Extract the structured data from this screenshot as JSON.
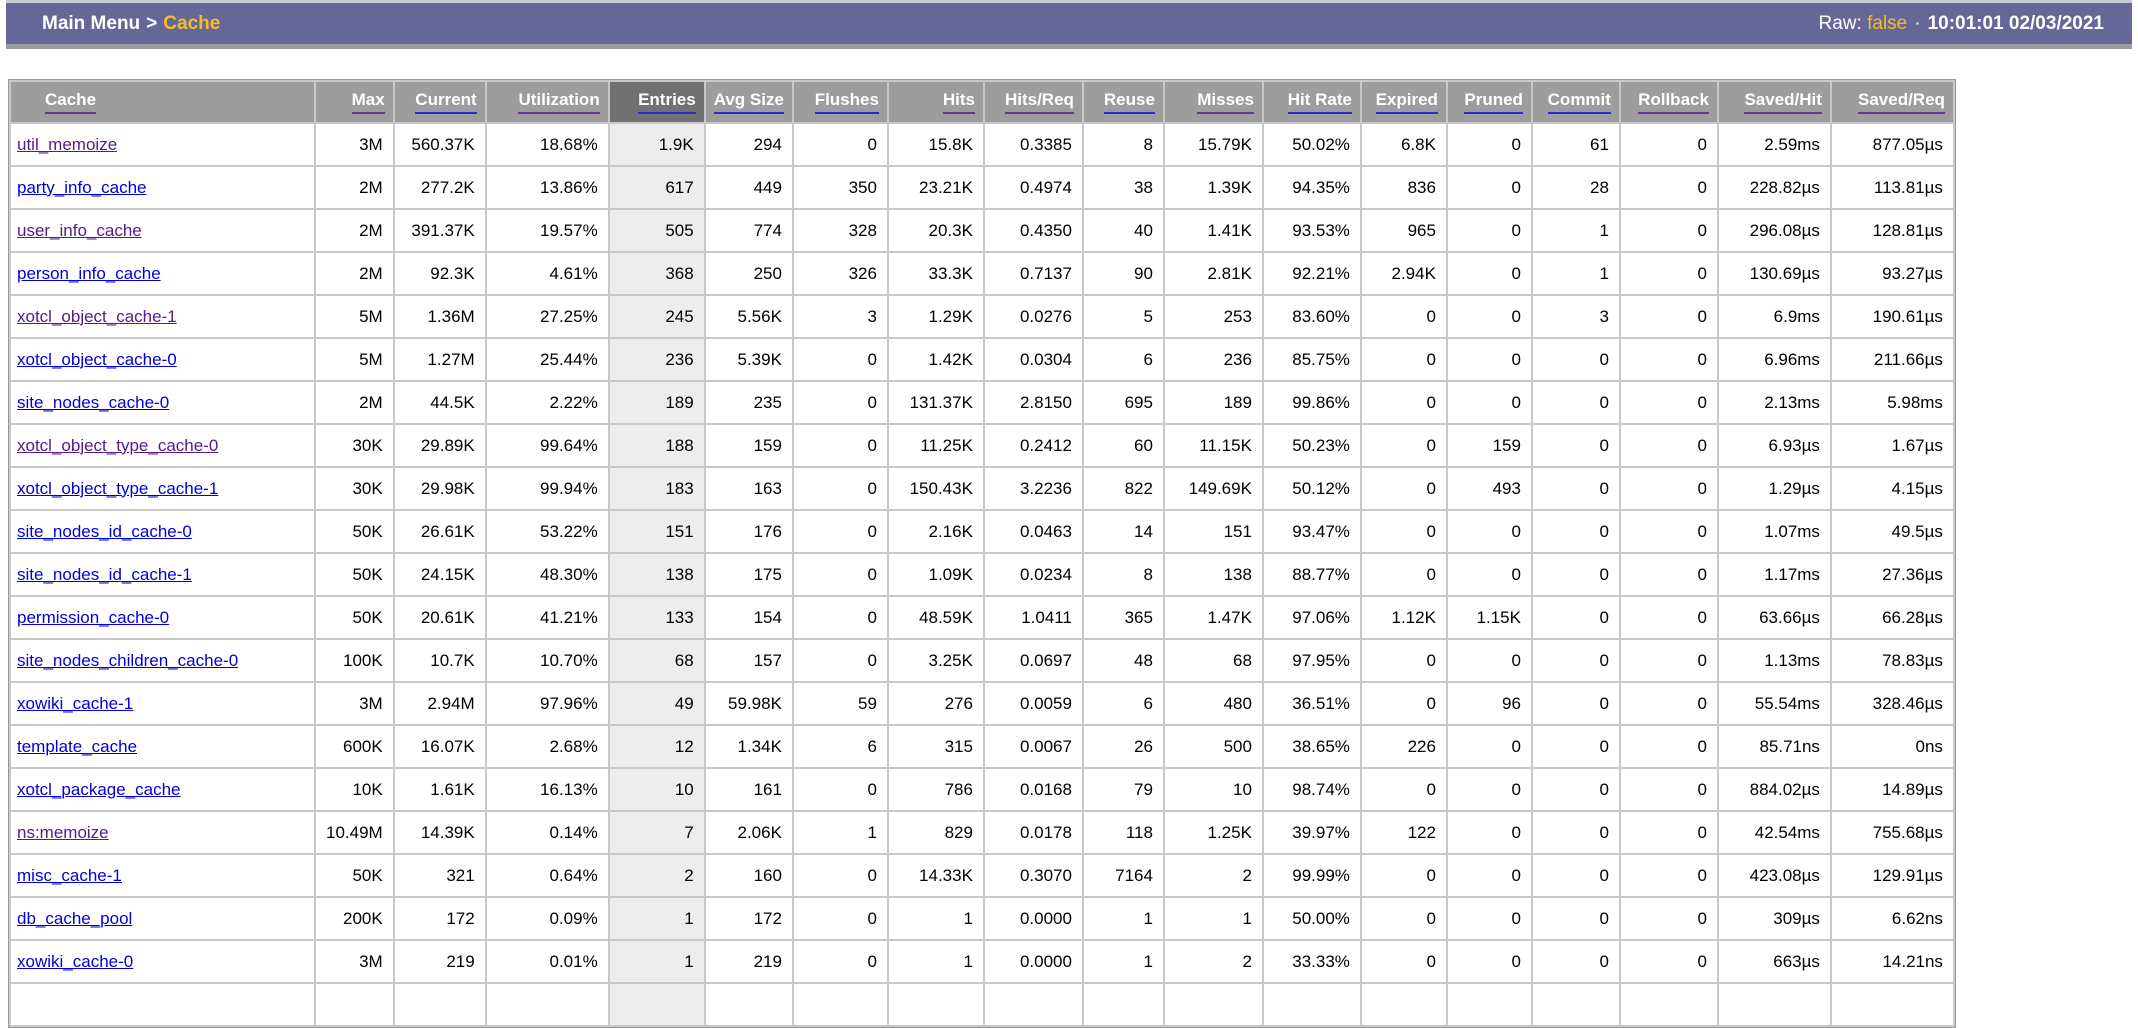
{
  "topbar": {
    "breadcrumb_root": "Main Menu",
    "breadcrumb_sep": ">",
    "breadcrumb_current": "Cache",
    "raw_label": "Raw:",
    "raw_value": "false",
    "dot": "·",
    "timestamp": "10:01:01 02/03/2021"
  },
  "colors": {
    "bar_bg": "#666699",
    "accent_yellow": "#f5bd1f",
    "header_bg": "#9d9d9d",
    "sorted_header_bg": "#717171",
    "sorted_column_bg": "#ededed",
    "link_visited": "#551a8b",
    "link_unvisited": "#0000dd"
  },
  "table": {
    "columns": [
      {
        "label": "Cache",
        "underline": "purple",
        "align": "left",
        "sorted": false
      },
      {
        "label": "Max",
        "underline": "purple",
        "align": "right",
        "sorted": false
      },
      {
        "label": "Current",
        "underline": "blue",
        "align": "right",
        "sorted": false
      },
      {
        "label": "Utilization",
        "underline": "purple",
        "align": "right",
        "sorted": false
      },
      {
        "label": "Entries",
        "underline": "blue",
        "align": "right",
        "sorted": true
      },
      {
        "label": "Avg Size",
        "underline": "blue",
        "align": "right",
        "sorted": false
      },
      {
        "label": "Flushes",
        "underline": "blue",
        "align": "right",
        "sorted": false
      },
      {
        "label": "Hits",
        "underline": "purple",
        "align": "right",
        "sorted": false
      },
      {
        "label": "Hits/Req",
        "underline": "purple",
        "align": "right",
        "sorted": false
      },
      {
        "label": "Reuse",
        "underline": "blue",
        "align": "right",
        "sorted": false
      },
      {
        "label": "Misses",
        "underline": "purple",
        "align": "right",
        "sorted": false
      },
      {
        "label": "Hit Rate",
        "underline": "blue",
        "align": "right",
        "sorted": false
      },
      {
        "label": "Expired",
        "underline": "blue",
        "align": "right",
        "sorted": false
      },
      {
        "label": "Pruned",
        "underline": "blue",
        "align": "right",
        "sorted": false
      },
      {
        "label": "Commit",
        "underline": "blue",
        "align": "right",
        "sorted": false
      },
      {
        "label": "Rollback",
        "underline": "purple",
        "align": "right",
        "sorted": false
      },
      {
        "label": "Saved/Hit",
        "underline": "purple",
        "align": "right",
        "sorted": false
      },
      {
        "label": "Saved/Req",
        "underline": "purple",
        "align": "right",
        "sorted": false
      }
    ],
    "rows": [
      {
        "name": "util_memoize",
        "visited": true,
        "values": [
          "3M",
          "560.37K",
          "18.68%",
          "1.9K",
          "294",
          "0",
          "15.8K",
          "0.3385",
          "8",
          "15.79K",
          "50.02%",
          "6.8K",
          "0",
          "61",
          "0",
          "2.59ms",
          "877.05µs"
        ]
      },
      {
        "name": "party_info_cache",
        "visited": false,
        "values": [
          "2M",
          "277.2K",
          "13.86%",
          "617",
          "449",
          "350",
          "23.21K",
          "0.4974",
          "38",
          "1.39K",
          "94.35%",
          "836",
          "0",
          "28",
          "0",
          "228.82µs",
          "113.81µs"
        ]
      },
      {
        "name": "user_info_cache",
        "visited": true,
        "values": [
          "2M",
          "391.37K",
          "19.57%",
          "505",
          "774",
          "328",
          "20.3K",
          "0.4350",
          "40",
          "1.41K",
          "93.53%",
          "965",
          "0",
          "1",
          "0",
          "296.08µs",
          "128.81µs"
        ]
      },
      {
        "name": "person_info_cache",
        "visited": false,
        "values": [
          "2M",
          "92.3K",
          "4.61%",
          "368",
          "250",
          "326",
          "33.3K",
          "0.7137",
          "90",
          "2.81K",
          "92.21%",
          "2.94K",
          "0",
          "1",
          "0",
          "130.69µs",
          "93.27µs"
        ]
      },
      {
        "name": "xotcl_object_cache-1",
        "visited": true,
        "values": [
          "5M",
          "1.36M",
          "27.25%",
          "245",
          "5.56K",
          "3",
          "1.29K",
          "0.0276",
          "5",
          "253",
          "83.60%",
          "0",
          "0",
          "3",
          "0",
          "6.9ms",
          "190.61µs"
        ]
      },
      {
        "name": "xotcl_object_cache-0",
        "visited": false,
        "values": [
          "5M",
          "1.27M",
          "25.44%",
          "236",
          "5.39K",
          "0",
          "1.42K",
          "0.0304",
          "6",
          "236",
          "85.75%",
          "0",
          "0",
          "0",
          "0",
          "6.96ms",
          "211.66µs"
        ]
      },
      {
        "name": "site_nodes_cache-0",
        "visited": false,
        "values": [
          "2M",
          "44.5K",
          "2.22%",
          "189",
          "235",
          "0",
          "131.37K",
          "2.8150",
          "695",
          "189",
          "99.86%",
          "0",
          "0",
          "0",
          "0",
          "2.13ms",
          "5.98ms"
        ]
      },
      {
        "name": "xotcl_object_type_cache-0",
        "visited": true,
        "values": [
          "30K",
          "29.89K",
          "99.64%",
          "188",
          "159",
          "0",
          "11.25K",
          "0.2412",
          "60",
          "11.15K",
          "50.23%",
          "0",
          "159",
          "0",
          "0",
          "6.93µs",
          "1.67µs"
        ]
      },
      {
        "name": "xotcl_object_type_cache-1",
        "visited": false,
        "values": [
          "30K",
          "29.98K",
          "99.94%",
          "183",
          "163",
          "0",
          "150.43K",
          "3.2236",
          "822",
          "149.69K",
          "50.12%",
          "0",
          "493",
          "0",
          "0",
          "1.29µs",
          "4.15µs"
        ]
      },
      {
        "name": "site_nodes_id_cache-0",
        "visited": false,
        "values": [
          "50K",
          "26.61K",
          "53.22%",
          "151",
          "176",
          "0",
          "2.16K",
          "0.0463",
          "14",
          "151",
          "93.47%",
          "0",
          "0",
          "0",
          "0",
          "1.07ms",
          "49.5µs"
        ]
      },
      {
        "name": "site_nodes_id_cache-1",
        "visited": false,
        "values": [
          "50K",
          "24.15K",
          "48.30%",
          "138",
          "175",
          "0",
          "1.09K",
          "0.0234",
          "8",
          "138",
          "88.77%",
          "0",
          "0",
          "0",
          "0",
          "1.17ms",
          "27.36µs"
        ]
      },
      {
        "name": "permission_cache-0",
        "visited": false,
        "values": [
          "50K",
          "20.61K",
          "41.21%",
          "133",
          "154",
          "0",
          "48.59K",
          "1.0411",
          "365",
          "1.47K",
          "97.06%",
          "1.12K",
          "1.15K",
          "0",
          "0",
          "63.66µs",
          "66.28µs"
        ]
      },
      {
        "name": "site_nodes_children_cache-0",
        "visited": false,
        "values": [
          "100K",
          "10.7K",
          "10.70%",
          "68",
          "157",
          "0",
          "3.25K",
          "0.0697",
          "48",
          "68",
          "97.95%",
          "0",
          "0",
          "0",
          "0",
          "1.13ms",
          "78.83µs"
        ]
      },
      {
        "name": "xowiki_cache-1",
        "visited": false,
        "values": [
          "3M",
          "2.94M",
          "97.96%",
          "49",
          "59.98K",
          "59",
          "276",
          "0.0059",
          "6",
          "480",
          "36.51%",
          "0",
          "96",
          "0",
          "0",
          "55.54ms",
          "328.46µs"
        ]
      },
      {
        "name": "template_cache",
        "visited": false,
        "values": [
          "600K",
          "16.07K",
          "2.68%",
          "12",
          "1.34K",
          "6",
          "315",
          "0.0067",
          "26",
          "500",
          "38.65%",
          "226",
          "0",
          "0",
          "0",
          "85.71ns",
          "0ns"
        ]
      },
      {
        "name": "xotcl_package_cache",
        "visited": false,
        "values": [
          "10K",
          "1.61K",
          "16.13%",
          "10",
          "161",
          "0",
          "786",
          "0.0168",
          "79",
          "10",
          "98.74%",
          "0",
          "0",
          "0",
          "0",
          "884.02µs",
          "14.89µs"
        ]
      },
      {
        "name": "ns:memoize",
        "visited": true,
        "values": [
          "10.49M",
          "14.39K",
          "0.14%",
          "7",
          "2.06K",
          "1",
          "829",
          "0.0178",
          "118",
          "1.25K",
          "39.97%",
          "122",
          "0",
          "0",
          "0",
          "42.54ms",
          "755.68µs"
        ]
      },
      {
        "name": "misc_cache-1",
        "visited": false,
        "values": [
          "50K",
          "321",
          "0.64%",
          "2",
          "160",
          "0",
          "14.33K",
          "0.3070",
          "7164",
          "2",
          "99.99%",
          "0",
          "0",
          "0",
          "0",
          "423.08µs",
          "129.91µs"
        ]
      },
      {
        "name": "db_cache_pool",
        "visited": false,
        "values": [
          "200K",
          "172",
          "0.09%",
          "1",
          "172",
          "0",
          "1",
          "0.0000",
          "1",
          "1",
          "50.00%",
          "0",
          "0",
          "0",
          "0",
          "309µs",
          "6.62ns"
        ]
      },
      {
        "name": "xowiki_cache-0",
        "visited": false,
        "values": [
          "3M",
          "219",
          "0.01%",
          "1",
          "219",
          "0",
          "1",
          "0.0000",
          "1",
          "2",
          "33.33%",
          "0",
          "0",
          "0",
          "0",
          "663µs",
          "14.21ns"
        ]
      }
    ]
  }
}
